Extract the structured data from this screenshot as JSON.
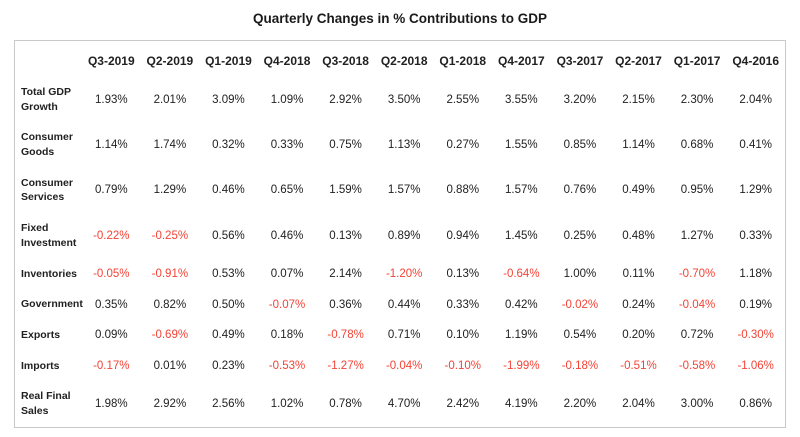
{
  "title": "Quarterly Changes in % Contributions to GDP",
  "colors": {
    "text": "#212121",
    "negative": "#f44336",
    "table_border": "#c9c9c9",
    "background": "#ffffff"
  },
  "chart_data": {
    "type": "table",
    "title": "Quarterly Changes in % Contributions to GDP",
    "columns": [
      "Q3-2019",
      "Q2-2019",
      "Q1-2019",
      "Q4-2018",
      "Q3-2018",
      "Q2-2018",
      "Q1-2018",
      "Q4-2017",
      "Q3-2017",
      "Q2-2017",
      "Q1-2017",
      "Q4-2016"
    ],
    "rows": [
      {
        "label": "Total GDP Growth",
        "values": [
          "1.93%",
          "2.01%",
          "3.09%",
          "1.09%",
          "2.92%",
          "3.50%",
          "2.55%",
          "3.55%",
          "3.20%",
          "2.15%",
          "2.30%",
          "2.04%"
        ]
      },
      {
        "label": "Consumer Goods",
        "values": [
          "1.14%",
          "1.74%",
          "0.32%",
          "0.33%",
          "0.75%",
          "1.13%",
          "0.27%",
          "1.55%",
          "0.85%",
          "1.14%",
          "0.68%",
          "0.41%"
        ]
      },
      {
        "label": "Consumer Services",
        "values": [
          "0.79%",
          "1.29%",
          "0.46%",
          "0.65%",
          "1.59%",
          "1.57%",
          "0.88%",
          "1.57%",
          "0.76%",
          "0.49%",
          "0.95%",
          "1.29%"
        ]
      },
      {
        "label": "Fixed Investment",
        "values": [
          "-0.22%",
          "-0.25%",
          "0.56%",
          "0.46%",
          "0.13%",
          "0.89%",
          "0.94%",
          "1.45%",
          "0.25%",
          "0.48%",
          "1.27%",
          "0.33%"
        ]
      },
      {
        "label": "Inventories",
        "values": [
          "-0.05%",
          "-0.91%",
          "0.53%",
          "0.07%",
          "2.14%",
          "-1.20%",
          "0.13%",
          "-0.64%",
          "1.00%",
          "0.11%",
          "-0.70%",
          "1.18%"
        ]
      },
      {
        "label": "Government",
        "values": [
          "0.35%",
          "0.82%",
          "0.50%",
          "-0.07%",
          "0.36%",
          "0.44%",
          "0.33%",
          "0.42%",
          "-0.02%",
          "0.24%",
          "-0.04%",
          "0.19%"
        ]
      },
      {
        "label": "Exports",
        "values": [
          "0.09%",
          "-0.69%",
          "0.49%",
          "0.18%",
          "-0.78%",
          "0.71%",
          "0.10%",
          "1.19%",
          "0.54%",
          "0.20%",
          "0.72%",
          "-0.30%"
        ]
      },
      {
        "label": "Imports",
        "values": [
          "-0.17%",
          "0.01%",
          "0.23%",
          "-0.53%",
          "-1.27%",
          "-0.04%",
          "-0.10%",
          "-1.99%",
          "-0.18%",
          "-0.51%",
          "-0.58%",
          "-1.06%"
        ]
      },
      {
        "label": "Real Final Sales",
        "values": [
          "1.98%",
          "2.92%",
          "2.56%",
          "1.02%",
          "0.78%",
          "4.70%",
          "2.42%",
          "4.19%",
          "2.20%",
          "2.04%",
          "3.00%",
          "0.86%"
        ]
      }
    ]
  }
}
